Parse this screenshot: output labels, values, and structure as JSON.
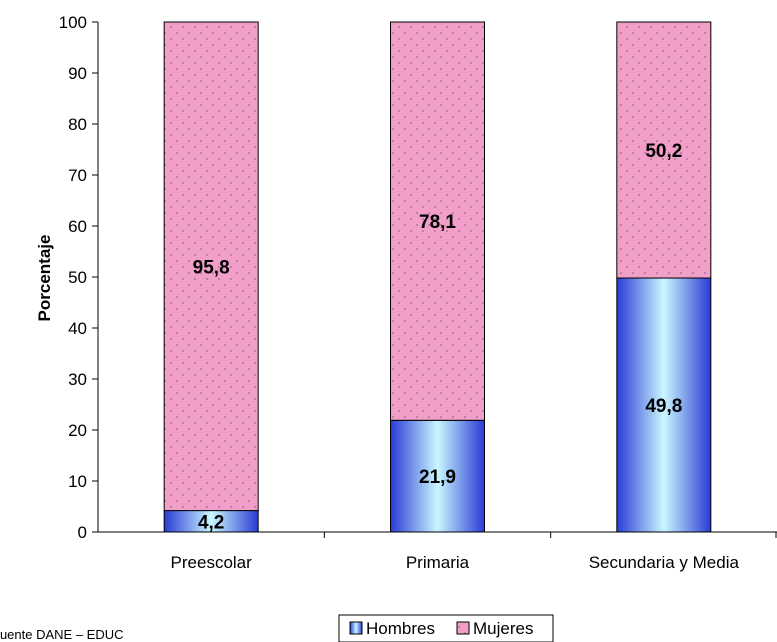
{
  "chart_data": {
    "type": "bar",
    "stacked": true,
    "categories": [
      "Preescolar",
      "Primaria",
      "Secundaria y Media"
    ],
    "series": [
      {
        "name": "Hombres",
        "values": [
          4.2,
          21.9,
          49.8
        ],
        "labels": [
          "4,2",
          "21,9",
          "49,8"
        ],
        "color": "#2a3bd6"
      },
      {
        "name": "Mujeres",
        "values": [
          95.8,
          78.1,
          50.2
        ],
        "labels": [
          "95,8",
          "78,1",
          "50,2"
        ],
        "color": "#f19ec9"
      }
    ],
    "ylabel": "Porcentaje",
    "ylim": [
      0,
      100
    ],
    "yticks": [
      "0",
      "10",
      "20",
      "30",
      "40",
      "50",
      "60",
      "70",
      "80",
      "90",
      "100"
    ],
    "grid": false,
    "legend": "bottom-center"
  },
  "footnote": "Fuente DANE – EDUC"
}
